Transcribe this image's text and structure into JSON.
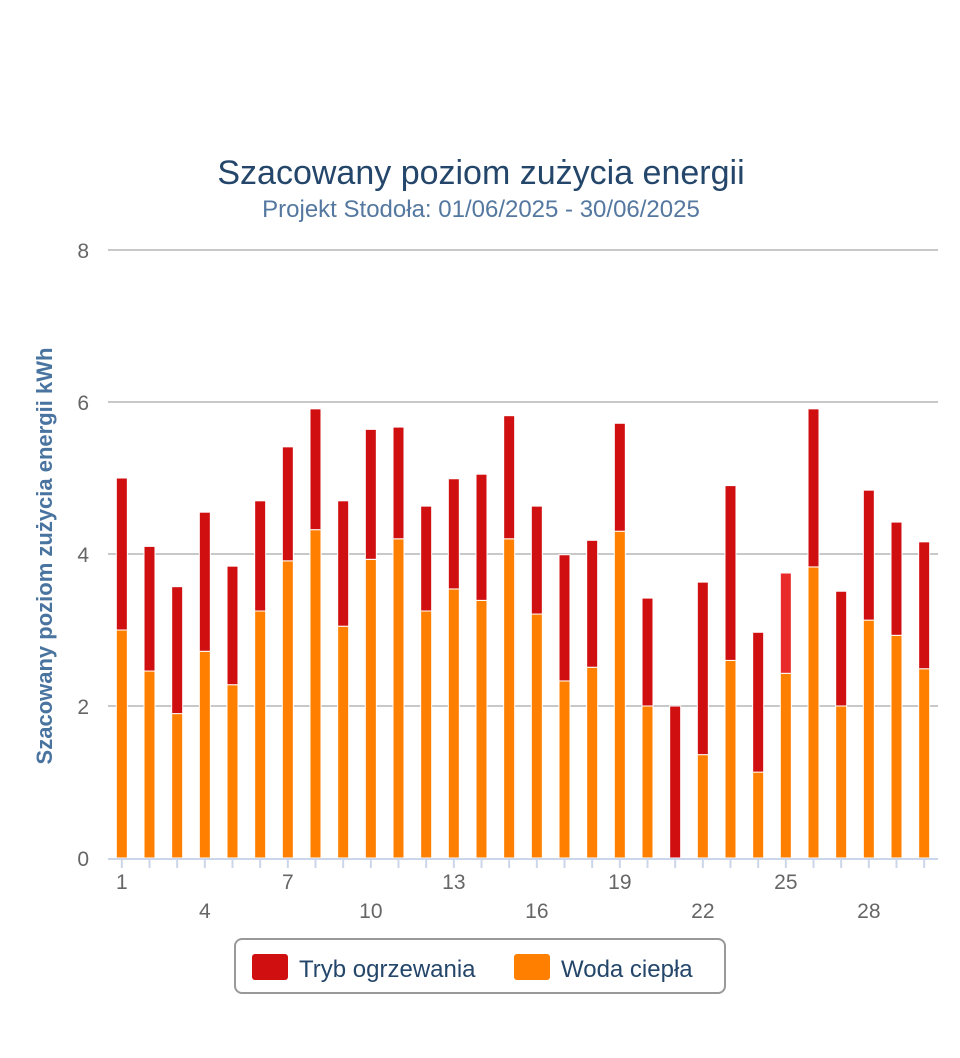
{
  "chart_data": {
    "type": "bar",
    "stacked": true,
    "title": "Szacowany poziom zużycia energii",
    "subtitle": "Projekt Stodoła: 01/06/2025 - 30/06/2025",
    "xlabel": "",
    "ylabel": "Szacowany poziom zużycia energii kWh",
    "ylim": [
      0,
      8
    ],
    "yticks": [
      "0",
      "2",
      "4",
      "6",
      "8"
    ],
    "ytick_values": [
      0,
      2,
      4,
      6,
      8
    ],
    "grid": true,
    "categories": [
      "1",
      "2",
      "3",
      "4",
      "5",
      "6",
      "7",
      "8",
      "9",
      "10",
      "11",
      "12",
      "13",
      "14",
      "15",
      "16",
      "17",
      "18",
      "19",
      "20",
      "21",
      "22",
      "23",
      "24",
      "25",
      "26",
      "27",
      "28",
      "29",
      "30"
    ],
    "xtick_labels_row1": [
      "1",
      "7",
      "13",
      "19",
      "25"
    ],
    "xtick_labels_row2": [
      "4",
      "10",
      "16",
      "22",
      "28"
    ],
    "series": [
      {
        "name": "Woda ciepła",
        "color": "#ff8000",
        "values": [
          3.0,
          2.46,
          1.9,
          2.72,
          2.28,
          3.25,
          3.91,
          4.32,
          3.05,
          3.93,
          4.2,
          3.25,
          3.54,
          3.39,
          4.2,
          3.21,
          2.33,
          2.51,
          4.3,
          2.0,
          0.0,
          1.36,
          2.6,
          1.13,
          2.43,
          3.83,
          2.0,
          3.13,
          2.93,
          2.49
        ]
      },
      {
        "name": "Tryb ogrzewania",
        "color": "#d01010",
        "values": [
          2.0,
          1.64,
          1.67,
          1.83,
          1.56,
          1.45,
          1.5,
          1.59,
          1.65,
          1.71,
          1.47,
          1.38,
          1.45,
          1.66,
          1.62,
          1.42,
          1.66,
          1.67,
          1.42,
          1.42,
          2.0,
          2.27,
          2.3,
          1.84,
          1.32,
          2.08,
          1.51,
          1.71,
          1.49,
          1.67
        ]
      }
    ],
    "highlighted_index": 24,
    "highlight_color": "#e82a2a",
    "legend": {
      "placement": "bottom-center",
      "items": [
        {
          "label": "Tryb ogrzewania",
          "color": "#d01010"
        },
        {
          "label": "Woda ciepła",
          "color": "#ff8000"
        }
      ]
    }
  }
}
